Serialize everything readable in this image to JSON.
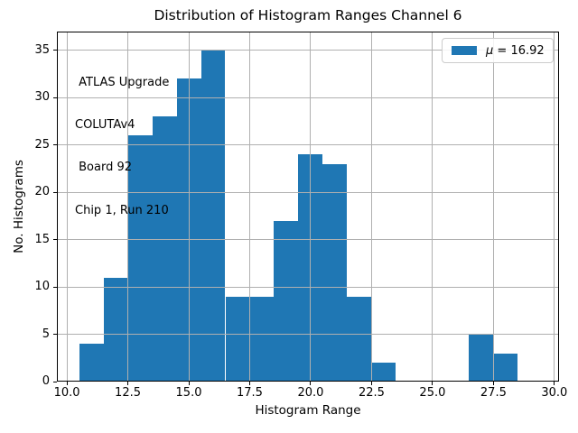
{
  "figure": {
    "title": "Distribution of Histogram Ranges Channel 6"
  },
  "axes": {
    "xlabel": "Histogram Range",
    "ylabel": "No. Histograms"
  },
  "annotation": {
    "lines": [
      " ATLAS Upgrade",
      "COLUTAv4",
      " Board 92",
      "Chip 1, Run 210"
    ]
  },
  "legend": {
    "symbol": "μ",
    "suffix": " = 16.92"
  },
  "colors": {
    "bar": "#1f77b4",
    "grid": "#b0b0b0",
    "spine": "#000000",
    "legend_border": "#cccccc"
  },
  "chart_data": {
    "type": "bar",
    "variant": "histogram",
    "title": "Distribution of Histogram Ranges Channel 6",
    "xlabel": "Histogram Range",
    "ylabel": "No. Histograms",
    "bin_edges": [
      10.5,
      11.5,
      12.5,
      13.5,
      14.5,
      15.5,
      16.5,
      17.5,
      18.5,
      19.5,
      20.5,
      21.5,
      22.5,
      23.5,
      24.5,
      25.5,
      26.5,
      27.5,
      28.5
    ],
    "counts": [
      4,
      11,
      26,
      28,
      32,
      35,
      9,
      9,
      17,
      24,
      23,
      9,
      2,
      0,
      0,
      0,
      5,
      3
    ],
    "xlim": [
      9.59,
      30.19
    ],
    "ylim": [
      0,
      37
    ],
    "xtick_values": [
      10,
      12.5,
      15,
      17.5,
      20,
      22.5,
      25,
      27.5,
      30
    ],
    "xtick_labels": [
      "10.0",
      "12.5",
      "15.0",
      "17.5",
      "20.0",
      "22.5",
      "25.0",
      "27.5",
      "30.0"
    ],
    "ytick_values": [
      0,
      5,
      10,
      15,
      20,
      25,
      30,
      35
    ],
    "ytick_labels": [
      "0",
      "5",
      "10",
      "15",
      "20",
      "25",
      "30",
      "35"
    ],
    "grid": true,
    "gridline_placement": "above-bars",
    "legend": {
      "label": "μ = 16.92",
      "position": "upper right"
    },
    "mean": 16.92,
    "annotation_text": "ATLAS Upgrade\nCOLUTAv4\n Board 92\nChip 1, Run 210"
  }
}
